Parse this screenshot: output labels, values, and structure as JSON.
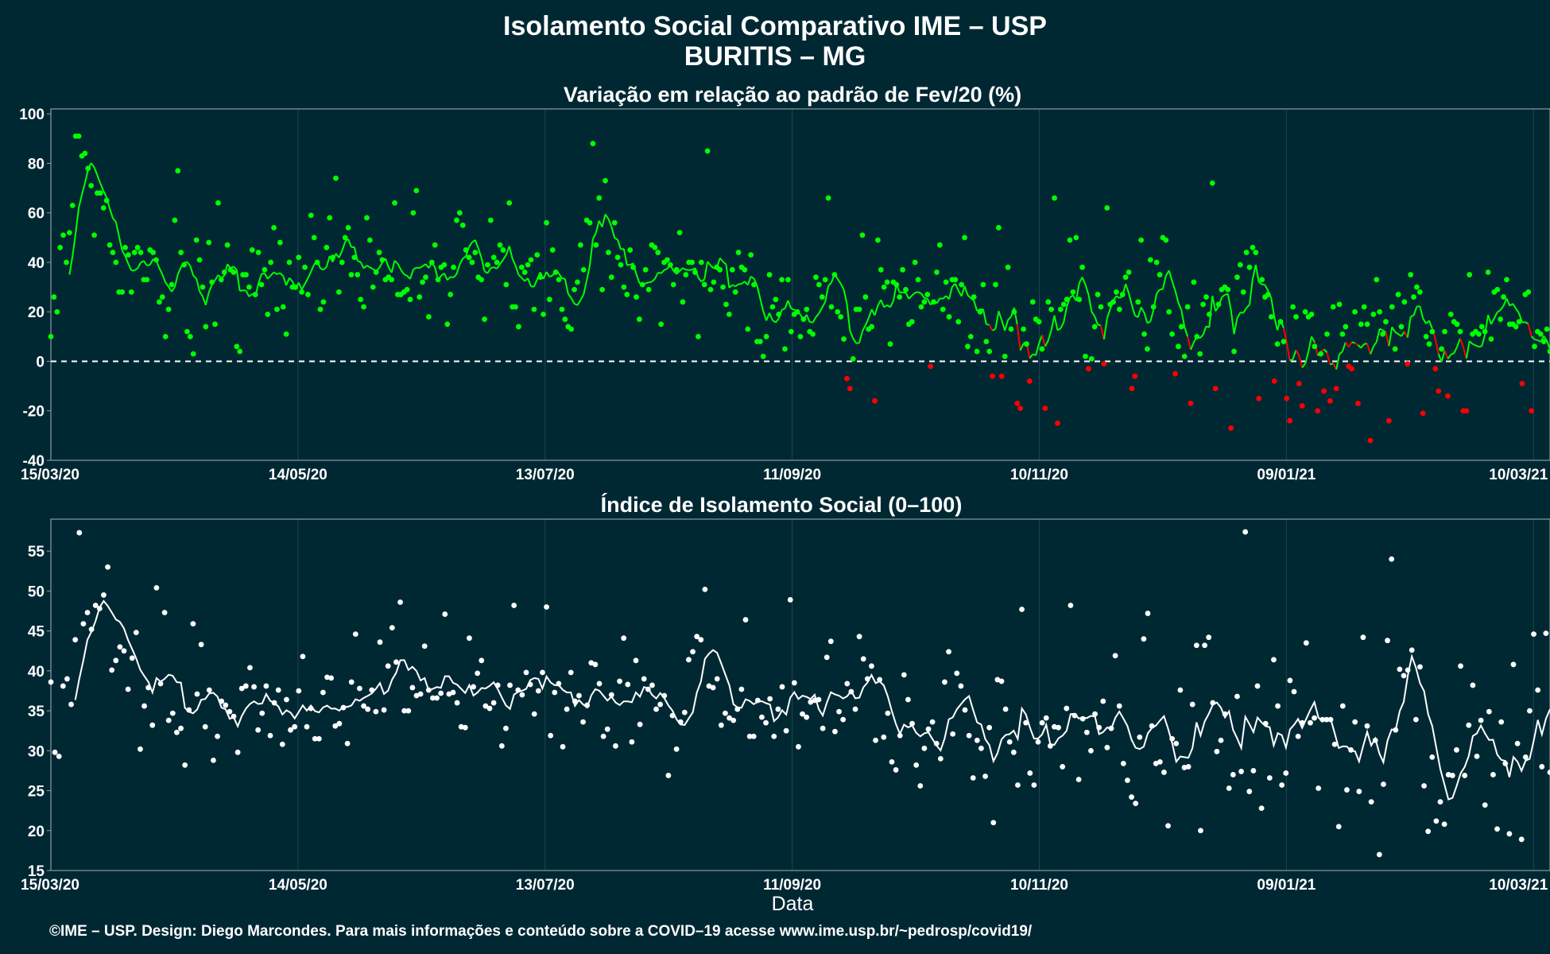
{
  "title": "Isolamento Social Comparativo IME – USP",
  "subtitle": "BURITIS – MG",
  "caption": "©IME – USP. Design: Diego Marcondes. Para mais informações e conteúdo sobre a COVID–19 acesse www.ime.usp.br/~pedrosp/covid19/",
  "colors": {
    "background": "#002833",
    "panel_border": "#8a9ba0",
    "grid": "#1e4652",
    "positive": "#00ff00",
    "negative": "#ff0000",
    "index": "#ffffff"
  },
  "chart_data": [
    {
      "type": "scatter",
      "title": "Variação em relação ao padrão de Fev/20 (%)",
      "xlabel": "",
      "ylabel": "",
      "x_start": "15/03/20",
      "x_end": "14/03/21",
      "x_tick_labels": [
        "15/03/20",
        "14/05/20",
        "13/07/20",
        "11/09/20",
        "10/11/20",
        "09/01/21",
        "10/03/21"
      ],
      "y_tick_labels": [
        100,
        80,
        60,
        40,
        20,
        0,
        -20,
        -40
      ],
      "ylim": [
        -40,
        102
      ],
      "reference_line": 0,
      "moving_average_window": 7,
      "grid": true,
      "color_rule": "green where value >= 0, red where value < 0",
      "series": [
        {
          "values": [
            10,
            26,
            20,
            46,
            51,
            40,
            52,
            63,
            91,
            91,
            83,
            84,
            78,
            71,
            51,
            68,
            68,
            62,
            65,
            47,
            44,
            40,
            28,
            28,
            46,
            43,
            28,
            44,
            46,
            44,
            33,
            33,
            45,
            44,
            41,
            24,
            26,
            10,
            21,
            31,
            57,
            77,
            44,
            39,
            12,
            10,
            3,
            49,
            41,
            30,
            14,
            48,
            32,
            15,
            64,
            33,
            36,
            47,
            37,
            36,
            6,
            4,
            35,
            35,
            30,
            45,
            27,
            44,
            31,
            37,
            19,
            40,
            54,
            21,
            48,
            22,
            11,
            40,
            30,
            30,
            42,
            28,
            38,
            27,
            59,
            50,
            40,
            21,
            24,
            46,
            58,
            42,
            74,
            28,
            40,
            50,
            54,
            35,
            42,
            35,
            25,
            22,
            58,
            49,
            30,
            36,
            44,
            41,
            33,
            34,
            33,
            64,
            27,
            27,
            28,
            29,
            25,
            60,
            69,
            26,
            32,
            34,
            18,
            40,
            47,
            33,
            38,
            39,
            15,
            27,
            38,
            57,
            60,
            55,
            45,
            42,
            40,
            44,
            34,
            33,
            17,
            39,
            57,
            42,
            40,
            47,
            45,
            31,
            64,
            22,
            22,
            14,
            38,
            36,
            39,
            41,
            21,
            43,
            34,
            19,
            56,
            25,
            45,
            36,
            33,
            21,
            17,
            14,
            13,
            29,
            32,
            47,
            37,
            57,
            56,
            88,
            47,
            66,
            29,
            73,
            44,
            34,
            56,
            42,
            39,
            30,
            27,
            45,
            38,
            26,
            17,
            31,
            37,
            29,
            47,
            46,
            44,
            15,
            40,
            41,
            39,
            31,
            37,
            52,
            24,
            35,
            40,
            40,
            36,
            10,
            40,
            31,
            85,
            29,
            32,
            38,
            37,
            30,
            23,
            19,
            37,
            28,
            44,
            38,
            37,
            13,
            43,
            31,
            8,
            8,
            2,
            10,
            35,
            22,
            25,
            19,
            33,
            5,
            33,
            12,
            19,
            20,
            10,
            17,
            21,
            12,
            11,
            34,
            31,
            26,
            33,
            66,
            22,
            35,
            20,
            18,
            9,
            -7,
            -11,
            1,
            21,
            21,
            51,
            26,
            13,
            14,
            -16,
            49,
            37,
            30,
            32,
            7,
            32,
            31,
            26,
            37,
            29,
            15,
            16,
            40,
            33,
            22,
            24,
            27,
            -2,
            24,
            36,
            47,
            21,
            32,
            18,
            33,
            33,
            16,
            31,
            50,
            6,
            10,
            26,
            4,
            20,
            31,
            8,
            4,
            -6,
            31,
            54,
            -6,
            2,
            38,
            13,
            20,
            -17,
            -19,
            13,
            7,
            -8,
            24,
            17,
            16,
            5,
            -19,
            24,
            21,
            66,
            -25,
            21,
            23,
            25,
            49,
            28,
            50,
            25,
            38,
            2,
            -3,
            1,
            14,
            27,
            22,
            -1,
            62,
            23,
            24,
            28,
            21,
            27,
            34,
            36,
            -11,
            -6,
            24,
            49,
            11,
            5,
            41,
            22,
            40,
            35,
            50,
            49,
            20,
            11,
            -5,
            6,
            14,
            2,
            22,
            -17,
            32,
            10,
            3,
            23,
            26,
            19,
            72,
            -11,
            23,
            29,
            30,
            29,
            -27,
            4,
            34,
            39,
            28,
            44,
            38,
            46,
            44,
            -15,
            33,
            26,
            27,
            18,
            -8,
            7,
            16,
            8,
            -15,
            -24,
            22,
            18,
            -9,
            -18,
            20,
            18,
            19,
            6,
            -20,
            3,
            -12,
            11,
            -16,
            22,
            -11,
            23,
            11,
            14,
            -2,
            -3,
            20,
            -17,
            15,
            22,
            15,
            -32,
            19,
            33,
            20,
            11,
            16,
            -24,
            22,
            5,
            27,
            14,
            24,
            -1,
            35,
            26,
            30,
            28,
            -21,
            10,
            7,
            12,
            -3,
            -12,
            5,
            12,
            -14,
            19,
            16,
            15,
            12,
            -20,
            -20,
            35,
            11,
            12,
            11,
            14,
            12,
            36,
            9,
            28,
            29,
            17,
            26,
            33,
            15,
            15,
            14,
            16,
            -9,
            27,
            28,
            -20,
            6,
            12,
            11,
            8,
            13,
            4
          ]
        }
      ]
    },
    {
      "type": "scatter",
      "title": "Índice de Isolamento Social (0–100)",
      "xlabel": "Data",
      "ylabel": "",
      "x_start": "15/03/20",
      "x_end": "14/03/21",
      "x_tick_labels": [
        "15/03/20",
        "14/05/20",
        "13/07/20",
        "11/09/20",
        "10/11/20",
        "09/01/21",
        "10/03/21"
      ],
      "y_tick_labels": [
        55,
        50,
        45,
        40,
        35,
        30,
        25,
        20,
        15
      ],
      "ylim": [
        15,
        59
      ],
      "moving_average_window": 7,
      "grid": true,
      "series": [
        {
          "values": [
            38.6,
            29.8,
            29.3,
            38.1,
            39.0,
            35.8,
            43.9,
            57.3,
            45.9,
            47.3,
            45.2,
            48.2,
            47.8,
            49.5,
            53.0,
            40.1,
            41.3,
            43.0,
            42.5,
            37.7,
            41.6,
            44.8,
            30.2,
            35.6,
            37.9,
            33.2,
            50.4,
            38.4,
            47.3,
            33.8,
            34.7,
            32.3,
            32.8,
            28.2,
            35.1,
            45.9,
            37.1,
            43.3,
            33.0,
            37.6,
            28.8,
            31.8,
            36.2,
            35.7,
            34.9,
            34.3,
            29.8,
            37.8,
            38.1,
            40.4,
            38.0,
            32.6,
            34.7,
            38.1,
            31.9,
            36.0,
            37.6,
            30.8,
            36.4,
            32.6,
            33.0,
            37.5,
            41.8,
            33.0,
            35.3,
            31.5,
            31.5,
            37.3,
            39.2,
            39.1,
            33.1,
            33.4,
            35.4,
            30.9,
            38.6,
            44.6,
            37.8,
            35.6,
            35.2,
            37.6,
            34.9,
            43.6,
            35.1,
            40.6,
            45.4,
            41.1,
            48.6,
            35.0,
            35.0,
            37.9,
            36.9,
            37.1,
            43.1,
            37.6,
            36.6,
            36.6,
            37.2,
            47.1,
            37.1,
            37.3,
            36.0,
            33.0,
            32.9,
            44.1,
            38.0,
            39.7,
            41.3,
            35.6,
            35.3,
            36.0,
            38.2,
            30.6,
            32.8,
            38.2,
            48.2,
            37.6,
            37.0,
            39.8,
            38.3,
            34.6,
            37.5,
            39.8,
            48.0,
            31.9,
            37.3,
            38.4,
            30.5,
            35.2,
            39.8,
            36.2,
            36.9,
            33.6,
            35.7,
            41.0,
            40.8,
            38.4,
            31.8,
            32.7,
            37.0,
            30.6,
            38.7,
            44.1,
            38.3,
            31.1,
            41.3,
            33.3,
            39.0,
            37.7,
            38.2,
            35.2,
            35.8,
            36.9,
            26.9,
            34.4,
            30.2,
            33.6,
            34.8,
            41.4,
            42.4,
            44.3,
            43.9,
            50.2,
            38.1,
            37.9,
            39.0,
            33.2,
            34.7,
            34.1,
            33.8,
            35.2,
            37.7,
            46.4,
            31.8,
            31.8,
            36.3,
            34.2,
            33.5,
            36.5,
            31.8,
            35.2,
            38.0,
            32.5,
            48.9,
            38.5,
            30.5,
            34.6,
            34.2,
            36.1,
            36.3,
            36.4,
            32.8,
            41.7,
            43.7,
            32.4,
            34.9,
            33.9,
            38.4,
            37.4,
            35.2,
            44.3,
            41.5,
            39.0,
            40.6,
            31.3,
            38.9,
            31.7,
            34.7,
            28.6,
            27.6,
            31.9,
            39.5,
            36.4,
            33.4,
            28.2,
            25.6,
            30.3,
            32.7,
            33.6,
            30.9,
            29.0,
            38.6,
            42.4,
            32.1,
            39.7,
            38.1,
            35.1,
            31.9,
            26.6,
            31.3,
            30.3,
            26.8,
            32.9,
            21.0,
            38.9,
            38.7,
            35.2,
            31.1,
            29.8,
            25.7,
            47.7,
            33.5,
            27.2,
            25.7,
            31.1,
            33.5,
            34.1,
            30.6,
            33.0,
            32.9,
            28.0,
            35.3,
            48.2,
            34.4,
            26.4,
            34.0,
            32.3,
            30.0,
            34.6,
            32.9,
            36.2,
            30.4,
            32.8,
            41.9,
            35.6,
            28.4,
            26.3,
            24.2,
            23.4,
            31.7,
            44.0,
            47.2,
            33.1,
            28.4,
            28.6,
            27.3,
            20.6,
            31.5,
            30.9,
            37.6,
            27.9,
            28.0,
            35.8,
            43.2,
            20.0,
            43.2,
            44.2,
            36.0,
            29.9,
            31.3,
            34.6,
            25.3,
            27.0,
            36.8,
            27.4,
            57.4,
            24.9,
            27.5,
            38.1,
            22.8,
            33.4,
            26.6,
            41.4,
            35.6,
            25.7,
            27.2,
            38.8,
            37.4,
            31.8,
            33.5,
            43.5,
            33.5,
            34.1,
            25.3,
            33.9,
            33.9,
            33.9,
            30.8,
            20.5,
            35.6,
            25.1,
            30.1,
            33.6,
            24.9,
            44.2,
            33.1,
            23.6,
            31.3,
            17.0,
            25.8,
            43.8,
            54.0,
            32.6,
            40.2,
            39.4,
            40.1,
            42.6,
            33.9,
            40.5,
            25.6,
            19.9,
            29.2,
            21.2,
            23.6,
            20.8,
            27.0,
            26.9,
            30.1,
            40.6,
            26.9,
            33.2,
            38.2,
            29.3,
            33.8,
            23.2,
            34.9,
            27.0,
            20.2,
            33.6,
            28.4,
            19.6,
            40.8,
            30.9,
            18.9,
            29.2,
            35.0,
            44.6,
            37.6,
            28.0,
            44.7,
            27.3
          ]
        }
      ]
    }
  ]
}
